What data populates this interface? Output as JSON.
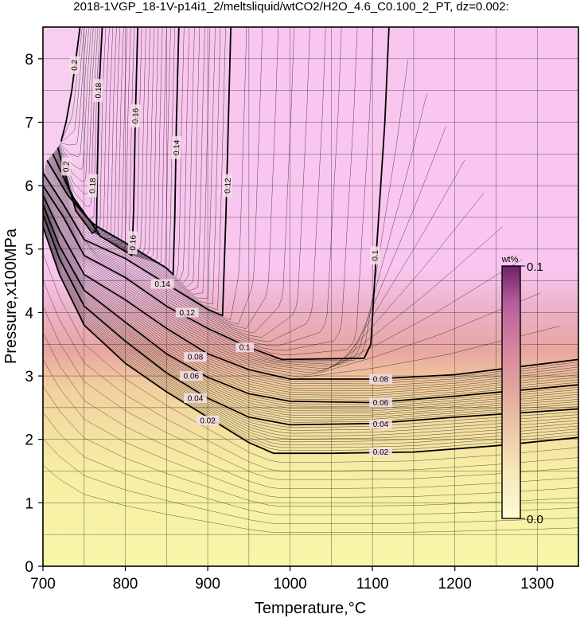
{
  "chart_data": {
    "type": "heatmap",
    "title": "2018-1VGP_18-1V-p14i1_2/meltsliquid/wtCO2/H2O_4.6_C0.100_2_PT, dz=0.002:",
    "xlabel": "Temperature,°C",
    "ylabel": "Pressure,x100MPa",
    "xlim": [
      700,
      1350
    ],
    "ylim": [
      0,
      8.5
    ],
    "xticks": [
      "700",
      "800",
      "900",
      "1000",
      "1100",
      "1200",
      "1300"
    ],
    "yticks": [
      "0",
      "1",
      "2",
      "3",
      "4",
      "5",
      "6",
      "7",
      "8"
    ],
    "grid": true,
    "colorbar": {
      "unit": "wt%",
      "min_label": "0.0",
      "max_label": "0.1",
      "min": 0.0,
      "max": 0.1,
      "colors": [
        "#f8f6a0",
        "#f2c4a6",
        "#d98a8a",
        "#c87ab4",
        "#7a2a6e"
      ]
    },
    "contour_interval": 0.002,
    "background_color_high": "#f8c6ee",
    "background_color_low": "#f8f6a8",
    "contours": [
      {
        "level": 0.02,
        "label": "0.02",
        "points": [
          [
            700,
            5.35
          ],
          [
            720,
            4.6
          ],
          [
            750,
            3.8
          ],
          [
            800,
            3.2
          ],
          [
            850,
            2.75
          ],
          [
            900,
            2.35
          ],
          [
            950,
            1.95
          ],
          [
            980,
            1.78
          ],
          [
            1050,
            1.78
          ],
          [
            1150,
            1.8
          ],
          [
            1250,
            1.9
          ],
          [
            1350,
            2.03
          ]
        ]
      },
      {
        "level": 0.04,
        "label": "0.04",
        "points": [
          [
            700,
            5.55
          ],
          [
            720,
            4.85
          ],
          [
            750,
            4.1
          ],
          [
            800,
            3.55
          ],
          [
            850,
            3.05
          ],
          [
            900,
            2.65
          ],
          [
            950,
            2.35
          ],
          [
            1000,
            2.23
          ],
          [
            1100,
            2.25
          ],
          [
            1200,
            2.35
          ],
          [
            1350,
            2.48
          ]
        ]
      },
      {
        "level": 0.06,
        "label": "0.06",
        "points": [
          [
            700,
            5.7
          ],
          [
            720,
            5.05
          ],
          [
            750,
            4.35
          ],
          [
            800,
            3.85
          ],
          [
            850,
            3.35
          ],
          [
            900,
            2.98
          ],
          [
            950,
            2.72
          ],
          [
            1000,
            2.6
          ],
          [
            1100,
            2.58
          ],
          [
            1200,
            2.68
          ],
          [
            1350,
            2.86
          ]
        ]
      },
      {
        "level": 0.08,
        "label": "0.08",
        "points": [
          [
            700,
            5.85
          ],
          [
            720,
            5.3
          ],
          [
            750,
            4.6
          ],
          [
            800,
            4.2
          ],
          [
            850,
            3.75
          ],
          [
            900,
            3.35
          ],
          [
            950,
            3.1
          ],
          [
            1000,
            2.95
          ],
          [
            1100,
            2.95
          ],
          [
            1200,
            3.02
          ],
          [
            1350,
            3.26
          ]
        ]
      },
      {
        "level": 0.1,
        "label": "0.1",
        "points": [
          [
            700,
            6.0
          ],
          [
            725,
            5.5
          ],
          [
            750,
            4.9
          ],
          [
            800,
            4.55
          ],
          [
            850,
            4.1
          ],
          [
            900,
            3.75
          ],
          [
            950,
            3.45
          ],
          [
            990,
            3.26
          ],
          [
            1090,
            3.28
          ],
          [
            1098,
            3.5
          ],
          [
            1105,
            5.0
          ],
          [
            1115,
            7.0
          ],
          [
            1120,
            8.5
          ]
        ]
      },
      {
        "level": 0.12,
        "label": "0.12",
        "points": [
          [
            700,
            6.2
          ],
          [
            725,
            5.7
          ],
          [
            750,
            5.15
          ],
          [
            800,
            4.85
          ],
          [
            850,
            4.45
          ],
          [
            900,
            4.05
          ],
          [
            918,
            3.95
          ],
          [
            922,
            5.5
          ],
          [
            925,
            7.0
          ],
          [
            928,
            8.5
          ]
        ]
      },
      {
        "level": 0.14,
        "label": "0.14",
        "points": [
          [
            705,
            6.4
          ],
          [
            730,
            5.85
          ],
          [
            760,
            5.4
          ],
          [
            800,
            5.1
          ],
          [
            850,
            4.7
          ],
          [
            858,
            4.6
          ],
          [
            860,
            5.5
          ],
          [
            862,
            7.0
          ],
          [
            865,
            8.5
          ]
        ]
      },
      {
        "level": 0.16,
        "label": "0.16",
        "points": [
          [
            712,
            6.5
          ],
          [
            735,
            5.85
          ],
          [
            770,
            5.2
          ],
          [
            808,
            4.9
          ],
          [
            810,
            5.6
          ],
          [
            812,
            7.0
          ],
          [
            815,
            8.5
          ]
        ]
      },
      {
        "level": 0.18,
        "label": "0.18",
        "points": [
          [
            718,
            6.6
          ],
          [
            740,
            5.6
          ],
          [
            760,
            5.25
          ],
          [
            765,
            5.3
          ],
          [
            766,
            6.2
          ],
          [
            768,
            7.5
          ],
          [
            772,
            8.5
          ]
        ]
      },
      {
        "level": 0.2,
        "label": "0.2",
        "points": [
          [
            722,
            6.7
          ],
          [
            728,
            7.0
          ],
          [
            735,
            7.5
          ],
          [
            740,
            8.0
          ],
          [
            745,
            8.5
          ]
        ]
      }
    ],
    "contour_labels": [
      {
        "text": "0.02",
        "x": 900,
        "y": 2.3
      },
      {
        "text": "0.02",
        "x": 1110,
        "y": 1.8
      },
      {
        "text": "0.04",
        "x": 885,
        "y": 2.65
      },
      {
        "text": "0.04",
        "x": 1110,
        "y": 2.24
      },
      {
        "text": "0.06",
        "x": 880,
        "y": 3.0
      },
      {
        "text": "0.06",
        "x": 1110,
        "y": 2.58
      },
      {
        "text": "0.08",
        "x": 885,
        "y": 3.3
      },
      {
        "text": "0.08",
        "x": 1110,
        "y": 2.95
      },
      {
        "text": "0.1",
        "x": 945,
        "y": 3.45
      },
      {
        "text": "0.1",
        "x": 1103,
        "y": 4.9
      },
      {
        "text": "0.12",
        "x": 875,
        "y": 4.0
      },
      {
        "text": "0.12",
        "x": 924,
        "y": 6.0
      },
      {
        "text": "0.14",
        "x": 845,
        "y": 4.45
      },
      {
        "text": "0.14",
        "x": 862,
        "y": 6.6
      },
      {
        "text": "0.16",
        "x": 809,
        "y": 5.1
      },
      {
        "text": "0.16",
        "x": 812,
        "y": 7.1
      },
      {
        "text": "0.18",
        "x": 760,
        "y": 6.0
      },
      {
        "text": "0.18",
        "x": 767,
        "y": 7.5
      },
      {
        "text": "0.2",
        "x": 728,
        "y": 6.3
      },
      {
        "text": "0.2",
        "x": 738,
        "y": 7.9
      }
    ]
  }
}
